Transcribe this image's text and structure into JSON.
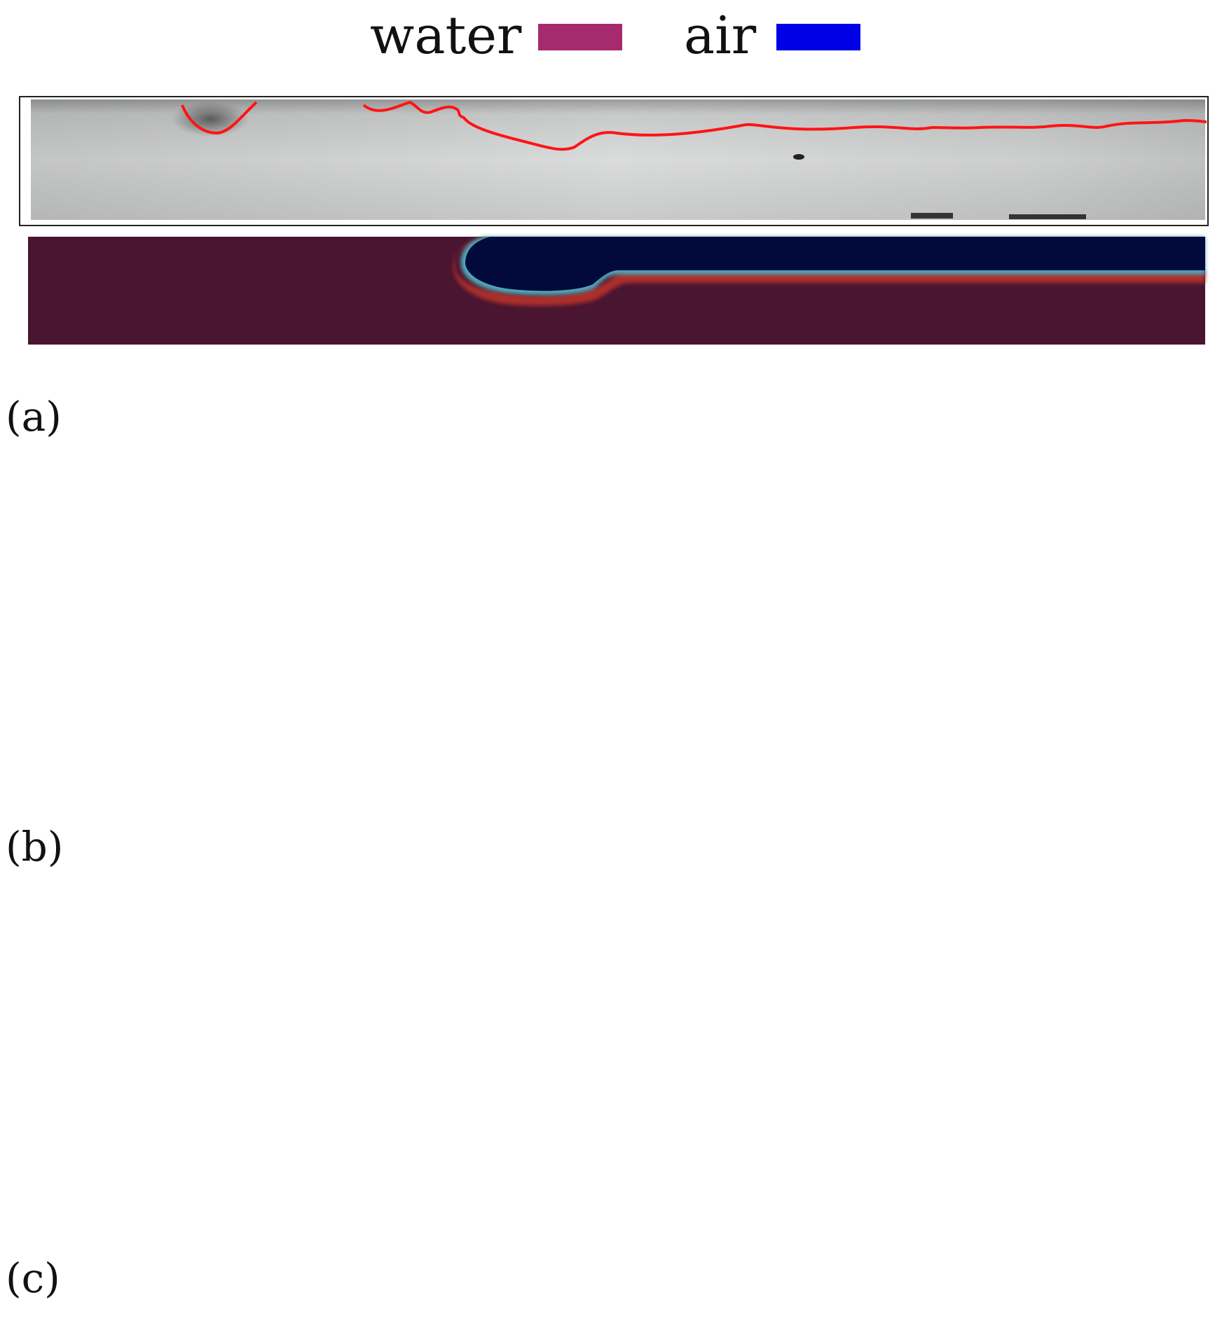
{
  "legend": {
    "water_label": "water",
    "air_label": "air",
    "water_color": "#a52a6e",
    "air_color": "#0000e6"
  },
  "panels": [
    {
      "label": "(a)"
    },
    {
      "label": "(b)"
    },
    {
      "label": "(c)"
    }
  ],
  "colors": {
    "interface_line": "#ff1414",
    "sim_water": "#4a1530",
    "sim_water_b": "#55283c",
    "sim_air": "#020a3c",
    "photo_base": "#d8d9d9"
  }
}
